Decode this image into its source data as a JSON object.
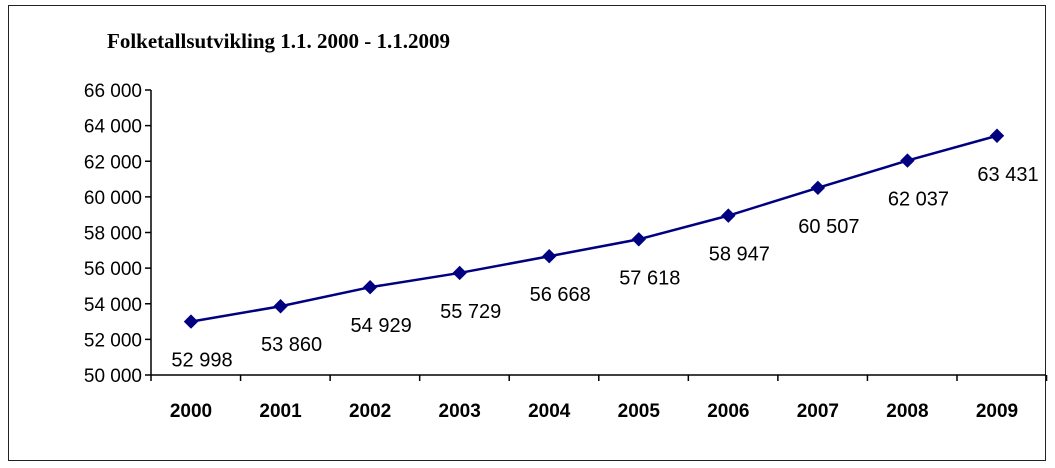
{
  "chart_data": {
    "type": "line",
    "title": "Folketallsutvikling 1.1. 2000 - 1.1.2009",
    "xlabel": "",
    "ylabel": "",
    "categories": [
      "2000",
      "2001",
      "2002",
      "2003",
      "2004",
      "2005",
      "2006",
      "2007",
      "2008",
      "2009"
    ],
    "series": [
      {
        "values": [
          52998,
          53860,
          54929,
          55729,
          56668,
          57618,
          58947,
          60507,
          62037,
          63431
        ],
        "data_labels": [
          "52 998",
          "53 860",
          "54 929",
          "55 729",
          "56 668",
          "57 618",
          "58 947",
          "60 507",
          "62 037",
          "63 431"
        ],
        "color": "#000080",
        "marker": "diamond"
      }
    ],
    "ylim": [
      50000,
      66000
    ],
    "yticks": [
      50000,
      52000,
      54000,
      56000,
      58000,
      60000,
      62000,
      64000,
      66000
    ],
    "ytick_labels": [
      "50 000",
      "52 000",
      "54 000",
      "56 000",
      "58 000",
      "60 000",
      "62 000",
      "64 000",
      "66 000"
    ],
    "grid": false,
    "legend": "none"
  }
}
